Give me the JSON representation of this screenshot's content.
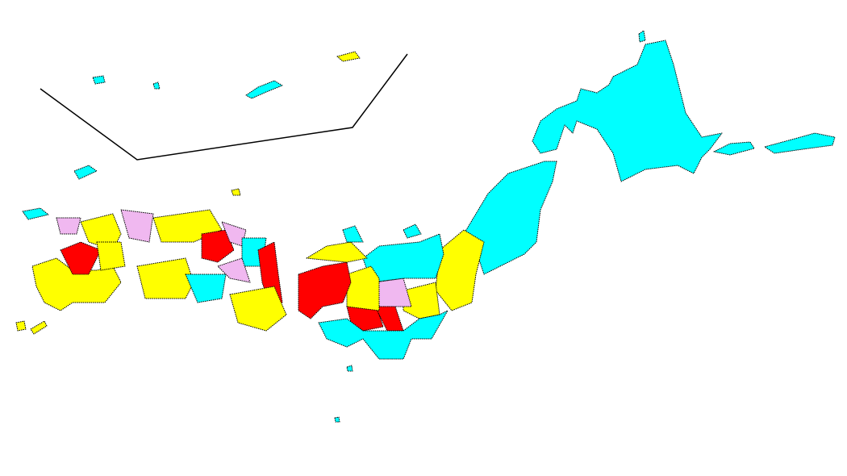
{
  "map": {
    "palette": {
      "cyan": "#00ffff",
      "yellow": "#ffff00",
      "red": "#ff0000",
      "pink": "#f0b8f0"
    },
    "inset_frame_color": "#000000",
    "background": "#ffffff"
  }
}
